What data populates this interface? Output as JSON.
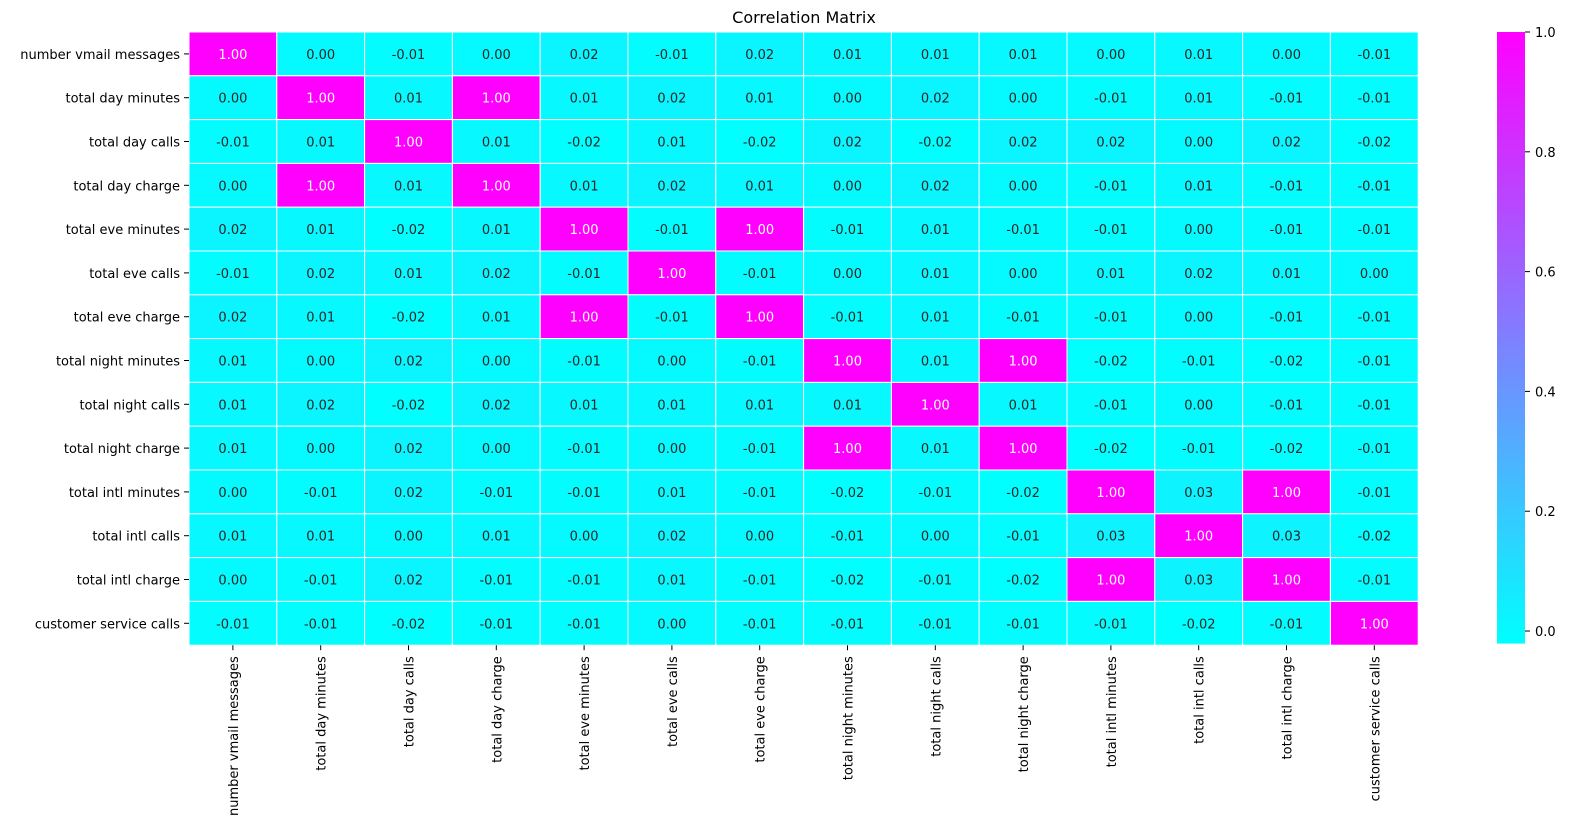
{
  "chart_data": {
    "type": "heatmap",
    "title": "Correlation Matrix",
    "labels": [
      "number vmail messages",
      "total day minutes",
      "total day calls",
      "total day charge",
      "total eve minutes",
      "total eve calls",
      "total eve charge",
      "total night minutes",
      "total night calls",
      "total night charge",
      "total intl minutes",
      "total intl calls",
      "total intl charge",
      "customer service calls"
    ],
    "values": [
      [
        1.0,
        0.0,
        -0.01,
        0.0,
        0.02,
        -0.01,
        0.02,
        0.01,
        0.01,
        0.01,
        0.0,
        0.01,
        0.0,
        -0.01
      ],
      [
        0.0,
        1.0,
        0.01,
        1.0,
        0.01,
        0.02,
        0.01,
        0.0,
        0.02,
        0.0,
        -0.01,
        0.01,
        -0.01,
        -0.01
      ],
      [
        -0.01,
        0.01,
        1.0,
        0.01,
        -0.02,
        0.01,
        -0.02,
        0.02,
        -0.02,
        0.02,
        0.02,
        0.0,
        0.02,
        -0.02
      ],
      [
        0.0,
        1.0,
        0.01,
        1.0,
        0.01,
        0.02,
        0.01,
        0.0,
        0.02,
        0.0,
        -0.01,
        0.01,
        -0.01,
        -0.01
      ],
      [
        0.02,
        0.01,
        -0.02,
        0.01,
        1.0,
        -0.01,
        1.0,
        -0.01,
        0.01,
        -0.01,
        -0.01,
        0.0,
        -0.01,
        -0.01
      ],
      [
        -0.01,
        0.02,
        0.01,
        0.02,
        -0.01,
        1.0,
        -0.01,
        -0.0,
        0.01,
        -0.0,
        0.01,
        0.02,
        0.01,
        0.0
      ],
      [
        0.02,
        0.01,
        -0.02,
        0.01,
        1.0,
        -0.01,
        1.0,
        -0.01,
        0.01,
        -0.01,
        -0.01,
        0.0,
        -0.01,
        -0.01
      ],
      [
        0.01,
        0.0,
        0.02,
        0.0,
        -0.01,
        -0.0,
        -0.01,
        1.0,
        0.01,
        1.0,
        -0.02,
        -0.01,
        -0.02,
        -0.01
      ],
      [
        0.01,
        0.02,
        -0.02,
        0.02,
        0.01,
        0.01,
        0.01,
        0.01,
        1.0,
        0.01,
        -0.01,
        0.0,
        -0.01,
        -0.01
      ],
      [
        0.01,
        0.0,
        0.02,
        0.0,
        -0.01,
        -0.0,
        -0.01,
        1.0,
        0.01,
        1.0,
        -0.02,
        -0.01,
        -0.02,
        -0.01
      ],
      [
        0.0,
        -0.01,
        0.02,
        -0.01,
        -0.01,
        0.01,
        -0.01,
        -0.02,
        -0.01,
        -0.02,
        1.0,
        0.03,
        1.0,
        -0.01
      ],
      [
        0.01,
        0.01,
        0.0,
        0.01,
        0.0,
        0.02,
        0.0,
        -0.01,
        0.0,
        -0.01,
        0.03,
        1.0,
        0.03,
        -0.02
      ],
      [
        0.0,
        -0.01,
        0.02,
        -0.01,
        -0.01,
        0.01,
        -0.01,
        -0.02,
        -0.01,
        -0.02,
        1.0,
        0.03,
        1.0,
        -0.01
      ],
      [
        -0.01,
        -0.01,
        -0.02,
        -0.01,
        -0.01,
        0.0,
        -0.01,
        -0.01,
        -0.01,
        -0.01,
        -0.01,
        -0.02,
        -0.01,
        1.0
      ]
    ],
    "value_format": "2 decimals",
    "colormap": "cool",
    "colormap_low": "#00ffff",
    "colormap_high": "#ff00ff",
    "vmin": -0.02,
    "vmax": 1.0,
    "colorbar_ticks": [
      "0.0",
      "0.2",
      "0.4",
      "0.6",
      "0.8",
      "1.0"
    ],
    "colorbar_tick_values": [
      0.0,
      0.2,
      0.4,
      0.6,
      0.8,
      1.0
    ],
    "cell_text_dark": "#262626",
    "cell_text_light": "#ffffff",
    "grid_line_color": "#ffffff",
    "legend": "colorbar-right"
  }
}
